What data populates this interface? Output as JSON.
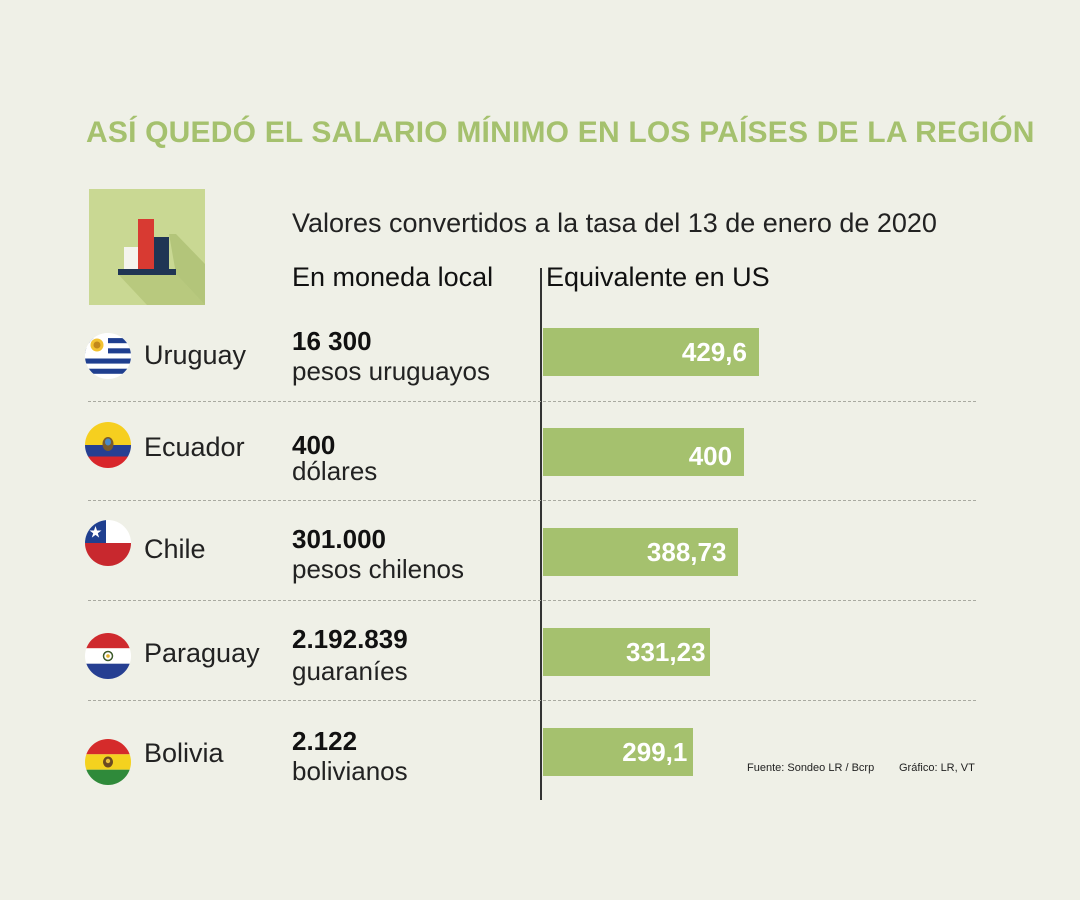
{
  "title": "ASÍ QUEDÓ EL SALARIO MÍNIMO EN LOS PAÍSES DE LA REGIÓN",
  "subtitle": "Valores convertidos a la tasa del 13 de enero de 2020",
  "icon": "bar-chart-icon",
  "colors": {
    "accent": "#a5c16e",
    "background": "#eff0e7",
    "icon_background": "#c9d893"
  },
  "columns": {
    "local": "En moneda local",
    "usd": "Equivalente en US"
  },
  "chart_data": {
    "type": "bar",
    "orientation": "horizontal",
    "title": "ASÍ QUEDÓ EL SALARIO MÍNIMO EN LOS PAÍSES DE LA REGIÓN",
    "subtitle": "Valores convertidos a la tasa del 13 de enero de 2020",
    "categories": [
      "Uruguay",
      "Ecuador",
      "Chile",
      "Paraguay",
      "Bolivia"
    ],
    "local_amounts": [
      "16 300",
      "400",
      "301.000",
      "2.192.839",
      "2.122"
    ],
    "local_currencies": [
      "pesos uruguayos",
      "dólares",
      "pesos chilenos",
      "guaraníes",
      "bolivianos"
    ],
    "values": [
      429.6,
      400,
      388.73,
      331.23,
      299.1
    ],
    "value_labels": [
      "429,6",
      "400",
      "388,73",
      "331,23",
      "299,1"
    ],
    "flag_icons": [
      "uruguay-flag-icon",
      "ecuador-flag-icon",
      "chile-flag-icon",
      "paraguay-flag-icon",
      "bolivia-flag-icon"
    ]
  },
  "footer": {
    "source": "Fuente: Sondeo LR / Bcrp",
    "credit": "Gráfico: LR, VT"
  }
}
